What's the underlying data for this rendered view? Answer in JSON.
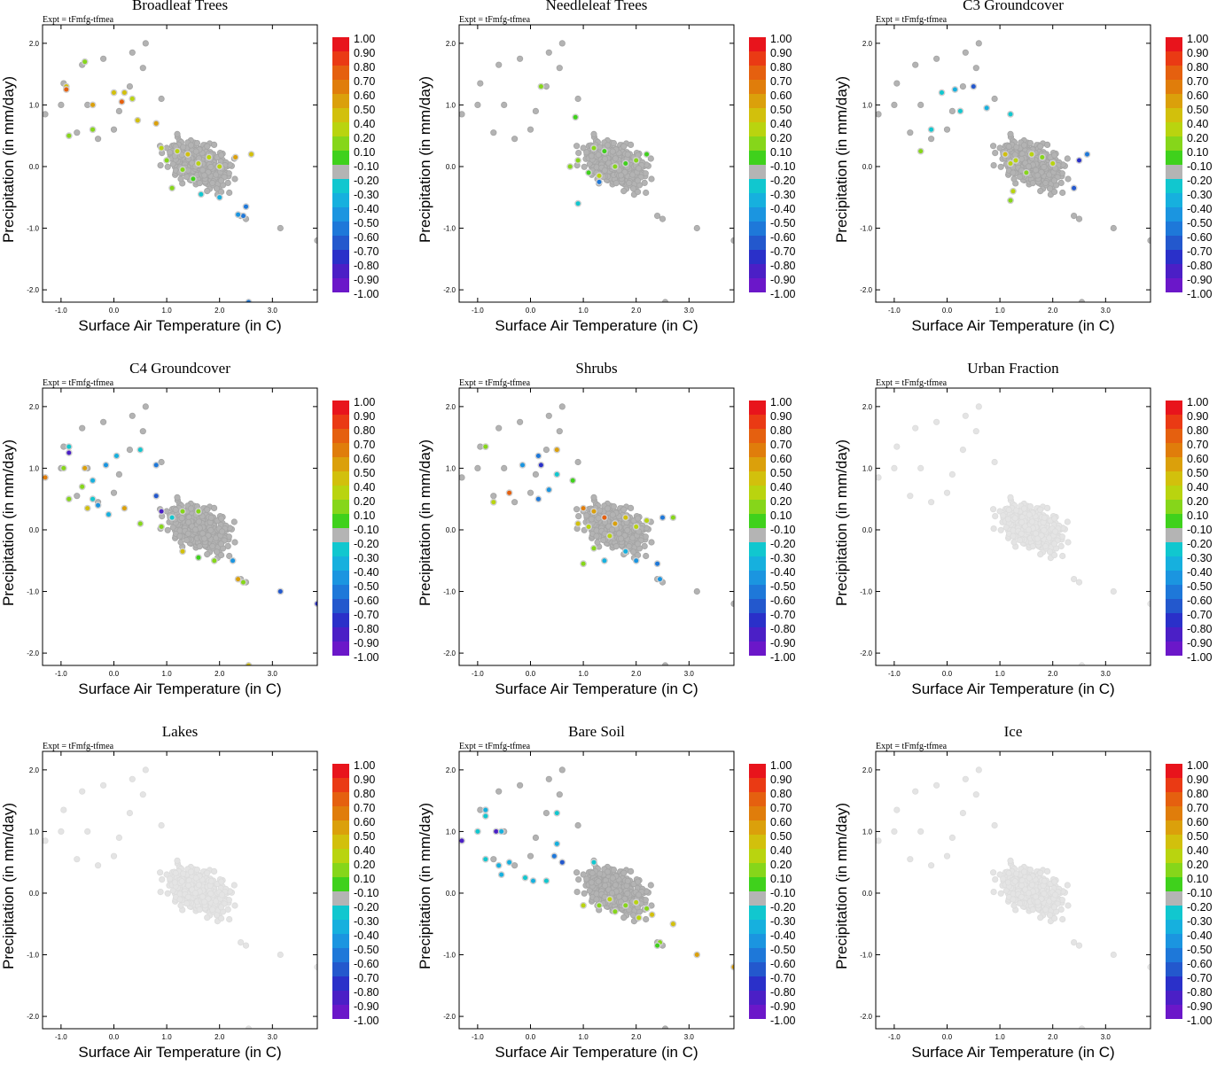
{
  "figure": {
    "type": "scatter-panels",
    "expt_label": "Expt = tFmfg-tfmea",
    "xlabel": "Surface Air Temperature (in C)",
    "ylabel": "Precipitation (in mm/day)",
    "x_ticks": [
      "-1.0",
      "0.0",
      "1.0",
      "2.0",
      "3.0"
    ],
    "y_ticks": [
      "2.0",
      "1.0",
      "0.0",
      "-1.0",
      "-2.0"
    ],
    "colorbar_labels": [
      "1.00",
      "0.90",
      "0.80",
      "0.70",
      "0.60",
      "0.50",
      "0.40",
      "0.20",
      "0.10",
      "-0.10",
      "-0.20",
      "-0.30",
      "-0.40",
      "-0.50",
      "-0.60",
      "-0.70",
      "-0.80",
      "-0.90",
      "-1.00"
    ],
    "colorbar_colors": [
      "#e8141c",
      "#ea3a14",
      "#e5600f",
      "#e07d0b",
      "#dba00b",
      "#d2c00c",
      "#b9d40f",
      "#86d61a",
      "#3fd11c",
      "#b4b4b4",
      "#11c7cf",
      "#16b0de",
      "#1b95e0",
      "#1e78d9",
      "#2358cd",
      "#2a30c9",
      "#4b1fc6",
      "#6b17c9"
    ],
    "colors": {
      "inactive": "#e4e4e4",
      "near_zero": "#b3b3b3",
      "ring": "#cfcfcf"
    }
  },
  "chart_data": [
    {
      "title": "Broadleaf Trees",
      "type": "scatter",
      "xlim": [
        -1.35,
        3.85
      ],
      "ylim": [
        -2.2,
        2.3
      ],
      "points": [
        {
          "x": -0.9,
          "y": 1.3,
          "v": 0.5
        },
        {
          "x": -0.9,
          "y": 1.25,
          "v": 0.8
        },
        {
          "x": -0.55,
          "y": 1.7,
          "v": 0.2
        },
        {
          "x": -0.4,
          "y": 1.0,
          "v": 0.6
        },
        {
          "x": -0.85,
          "y": 0.5,
          "v": 0.2
        },
        {
          "x": -0.4,
          "y": 0.6,
          "v": 0.2
        },
        {
          "x": 0.0,
          "y": 1.2,
          "v": 0.5
        },
        {
          "x": 0.2,
          "y": 1.2,
          "v": 0.5
        },
        {
          "x": 0.15,
          "y": 1.05,
          "v": 0.8
        },
        {
          "x": 0.35,
          "y": 1.1,
          "v": 0.4
        },
        {
          "x": 0.45,
          "y": 0.75,
          "v": 0.5
        },
        {
          "x": 0.8,
          "y": 0.7,
          "v": 0.6
        },
        {
          "x": 0.9,
          "y": 0.3,
          "v": 0.4
        },
        {
          "x": 1.2,
          "y": 0.25,
          "v": 0.3
        },
        {
          "x": 1.4,
          "y": 0.2,
          "v": 0.5
        },
        {
          "x": 1.0,
          "y": 0.1,
          "v": 0.2
        },
        {
          "x": 1.6,
          "y": 0.05,
          "v": 0.3
        },
        {
          "x": 1.8,
          "y": 0.15,
          "v": 0.4
        },
        {
          "x": 1.3,
          "y": -0.05,
          "v": 0.2
        },
        {
          "x": 1.5,
          "y": -0.2,
          "v": 0.1
        },
        {
          "x": 1.1,
          "y": -0.35,
          "v": 0.2
        },
        {
          "x": 2.3,
          "y": 0.15,
          "v": 0.6
        },
        {
          "x": 2.6,
          "y": 0.2,
          "v": 0.5
        },
        {
          "x": 2.0,
          "y": 0.0,
          "v": 0.3
        },
        {
          "x": 2.0,
          "y": -0.5,
          "v": -0.3
        },
        {
          "x": 2.5,
          "y": -0.65,
          "v": -0.5
        },
        {
          "x": 2.45,
          "y": -0.8,
          "v": -0.5
        },
        {
          "x": 2.35,
          "y": -0.78,
          "v": -0.4
        },
        {
          "x": 1.65,
          "y": -0.45,
          "v": -0.2
        },
        {
          "x": 2.55,
          "y": -2.2,
          "v": -0.5
        }
      ]
    },
    {
      "title": "Needleleaf Trees",
      "type": "scatter",
      "xlim": [
        -1.35,
        3.85
      ],
      "ylim": [
        -2.2,
        2.3
      ],
      "points": [
        {
          "x": 0.2,
          "y": 1.3,
          "v": 0.2
        },
        {
          "x": 0.85,
          "y": 0.8,
          "v": 0.1
        },
        {
          "x": 1.2,
          "y": 0.3,
          "v": 0.2
        },
        {
          "x": 1.4,
          "y": 0.25,
          "v": 0.1
        },
        {
          "x": 0.9,
          "y": 0.1,
          "v": 0.2
        },
        {
          "x": 1.6,
          "y": 0.0,
          "v": 0.2
        },
        {
          "x": 1.8,
          "y": 0.05,
          "v": 0.1
        },
        {
          "x": 2.0,
          "y": 0.1,
          "v": 0.2
        },
        {
          "x": 2.2,
          "y": 0.2,
          "v": 0.1
        },
        {
          "x": 1.1,
          "y": -0.1,
          "v": 0.1
        },
        {
          "x": 0.75,
          "y": 0.0,
          "v": 0.2
        },
        {
          "x": 1.3,
          "y": -0.15,
          "v": 0.3
        },
        {
          "x": 0.9,
          "y": -0.6,
          "v": -0.2
        },
        {
          "x": 1.3,
          "y": -0.25,
          "v": -0.5
        }
      ]
    },
    {
      "title": "C3 Groundcover",
      "type": "scatter",
      "xlim": [
        -1.35,
        3.85
      ],
      "ylim": [
        -2.2,
        2.3
      ],
      "points": [
        {
          "x": -0.1,
          "y": 1.2,
          "v": -0.2
        },
        {
          "x": 0.15,
          "y": 1.25,
          "v": -0.3
        },
        {
          "x": 0.5,
          "y": 1.3,
          "v": -0.6
        },
        {
          "x": 0.75,
          "y": 0.95,
          "v": -0.3
        },
        {
          "x": 0.25,
          "y": 0.9,
          "v": -0.2
        },
        {
          "x": 1.2,
          "y": 0.85,
          "v": -0.2
        },
        {
          "x": -0.3,
          "y": 0.6,
          "v": -0.2
        },
        {
          "x": -0.5,
          "y": 0.25,
          "v": 0.2
        },
        {
          "x": 1.1,
          "y": 0.2,
          "v": 0.5
        },
        {
          "x": 1.3,
          "y": 0.1,
          "v": 0.4
        },
        {
          "x": 1.6,
          "y": 0.2,
          "v": 0.3
        },
        {
          "x": 1.8,
          "y": 0.15,
          "v": 0.2
        },
        {
          "x": 2.0,
          "y": 0.05,
          "v": 0.4
        },
        {
          "x": 1.2,
          "y": 0.05,
          "v": 0.3
        },
        {
          "x": 1.5,
          "y": -0.1,
          "v": 0.2
        },
        {
          "x": 1.25,
          "y": -0.4,
          "v": 0.3
        },
        {
          "x": 1.2,
          "y": -0.55,
          "v": 0.2
        },
        {
          "x": 2.5,
          "y": 0.1,
          "v": -0.7
        },
        {
          "x": 2.65,
          "y": 0.2,
          "v": -0.5
        },
        {
          "x": 2.4,
          "y": -0.35,
          "v": -0.6
        }
      ]
    },
    {
      "title": "C4 Groundcover",
      "type": "scatter",
      "xlim": [
        -1.35,
        3.85
      ],
      "ylim": [
        -2.2,
        2.3
      ],
      "points": [
        {
          "x": -1.3,
          "y": 0.85,
          "v": 0.7
        },
        {
          "x": -0.85,
          "y": 1.35,
          "v": -0.2
        },
        {
          "x": -0.85,
          "y": 1.25,
          "v": -0.8
        },
        {
          "x": -0.95,
          "y": 1.0,
          "v": 0.2
        },
        {
          "x": -0.55,
          "y": 1.0,
          "v": 0.6
        },
        {
          "x": -0.4,
          "y": 0.8,
          "v": -0.3
        },
        {
          "x": -0.6,
          "y": 0.7,
          "v": 0.2
        },
        {
          "x": -0.15,
          "y": 1.05,
          "v": -0.4
        },
        {
          "x": 0.05,
          "y": 1.2,
          "v": -0.3
        },
        {
          "x": 0.5,
          "y": 1.3,
          "v": -0.2
        },
        {
          "x": -0.85,
          "y": 0.5,
          "v": 0.2
        },
        {
          "x": -0.4,
          "y": 0.5,
          "v": -0.2
        },
        {
          "x": -0.3,
          "y": 0.4,
          "v": -0.4
        },
        {
          "x": -0.5,
          "y": 0.35,
          "v": 0.5
        },
        {
          "x": -0.1,
          "y": 0.25,
          "v": -0.3
        },
        {
          "x": 0.2,
          "y": 0.35,
          "v": 0.6
        },
        {
          "x": 0.5,
          "y": 0.1,
          "v": 0.2
        },
        {
          "x": 0.8,
          "y": 1.05,
          "v": -0.5
        },
        {
          "x": 0.8,
          "y": 0.55,
          "v": -0.6
        },
        {
          "x": 0.9,
          "y": 0.3,
          "v": -0.8
        },
        {
          "x": 1.1,
          "y": 0.2,
          "v": -0.2
        },
        {
          "x": 1.3,
          "y": 0.3,
          "v": 0.2
        },
        {
          "x": 1.6,
          "y": 0.3,
          "v": 0.2
        },
        {
          "x": 0.9,
          "y": 0.05,
          "v": 0.2
        },
        {
          "x": 1.3,
          "y": -0.35,
          "v": 0.5
        },
        {
          "x": 1.6,
          "y": -0.45,
          "v": 0.1
        },
        {
          "x": 1.9,
          "y": -0.5,
          "v": 0.2
        },
        {
          "x": 2.25,
          "y": -0.5,
          "v": -0.4
        },
        {
          "x": 2.35,
          "y": -0.8,
          "v": 0.6
        },
        {
          "x": 2.45,
          "y": -0.85,
          "v": 0.2
        },
        {
          "x": 3.15,
          "y": -1.0,
          "v": -0.6
        },
        {
          "x": 3.85,
          "y": -1.2,
          "v": -0.7
        },
        {
          "x": 2.55,
          "y": -2.2,
          "v": 0.5
        }
      ]
    },
    {
      "title": "Shrubs",
      "type": "scatter",
      "xlim": [
        -1.35,
        3.85
      ],
      "ylim": [
        -2.2,
        2.3
      ],
      "points": [
        {
          "x": -0.85,
          "y": 1.35,
          "v": 0.2
        },
        {
          "x": -0.15,
          "y": 1.05,
          "v": -0.4
        },
        {
          "x": 0.15,
          "y": 1.2,
          "v": -0.5
        },
        {
          "x": 0.2,
          "y": 1.05,
          "v": -0.7
        },
        {
          "x": 0.5,
          "y": 1.3,
          "v": 0.6
        },
        {
          "x": 0.5,
          "y": 0.9,
          "v": -0.2
        },
        {
          "x": -0.4,
          "y": 0.6,
          "v": 0.8
        },
        {
          "x": 0.35,
          "y": 0.65,
          "v": -0.4
        },
        {
          "x": -0.7,
          "y": 0.45,
          "v": 0.4
        },
        {
          "x": 0.15,
          "y": 0.5,
          "v": -0.5
        },
        {
          "x": 0.8,
          "y": 0.8,
          "v": 0.1
        },
        {
          "x": 1.0,
          "y": 0.35,
          "v": 0.7
        },
        {
          "x": 1.2,
          "y": 0.3,
          "v": 0.6
        },
        {
          "x": 1.4,
          "y": 0.2,
          "v": 0.8
        },
        {
          "x": 1.6,
          "y": 0.1,
          "v": 0.6
        },
        {
          "x": 0.9,
          "y": 0.1,
          "v": 0.5
        },
        {
          "x": 1.1,
          "y": 0.05,
          "v": 0.4
        },
        {
          "x": 1.8,
          "y": 0.2,
          "v": 0.5
        },
        {
          "x": 2.0,
          "y": 0.05,
          "v": 0.3
        },
        {
          "x": 2.2,
          "y": 0.15,
          "v": 0.4
        },
        {
          "x": 1.5,
          "y": -0.1,
          "v": 0.3
        },
        {
          "x": 2.5,
          "y": 0.2,
          "v": -0.5
        },
        {
          "x": 2.7,
          "y": 0.2,
          "v": 0.2
        },
        {
          "x": 1.2,
          "y": -0.3,
          "v": 0.2
        },
        {
          "x": 1.8,
          "y": -0.35,
          "v": -0.3
        },
        {
          "x": 2.0,
          "y": -0.5,
          "v": -0.4
        },
        {
          "x": 2.4,
          "y": -0.55,
          "v": -0.5
        },
        {
          "x": 1.0,
          "y": -0.55,
          "v": 0.2
        },
        {
          "x": 1.4,
          "y": -0.5,
          "v": -0.3
        },
        {
          "x": 2.45,
          "y": -0.8,
          "v": -0.4
        }
      ]
    },
    {
      "title": "Urban Fraction",
      "type": "scatter",
      "xlim": [
        -1.35,
        3.85
      ],
      "ylim": [
        -2.2,
        2.3
      ],
      "points": []
    },
    {
      "title": "Lakes",
      "type": "scatter",
      "xlim": [
        -1.35,
        3.85
      ],
      "ylim": [
        -2.2,
        2.3
      ],
      "points": []
    },
    {
      "title": "Bare Soil",
      "type": "scatter",
      "xlim": [
        -1.35,
        3.85
      ],
      "ylim": [
        -2.2,
        2.3
      ],
      "points": [
        {
          "x": -1.3,
          "y": 0.85,
          "v": -0.8
        },
        {
          "x": -0.85,
          "y": 1.35,
          "v": -0.3
        },
        {
          "x": -0.85,
          "y": 1.25,
          "v": -0.2
        },
        {
          "x": -1.0,
          "y": 1.0,
          "v": -0.2
        },
        {
          "x": -0.65,
          "y": 1.0,
          "v": -0.8
        },
        {
          "x": -0.55,
          "y": 1.0,
          "v": -0.3
        },
        {
          "x": -0.85,
          "y": 0.55,
          "v": -0.2
        },
        {
          "x": -0.6,
          "y": 0.45,
          "v": -0.3
        },
        {
          "x": -0.4,
          "y": 0.5,
          "v": -0.3
        },
        {
          "x": -0.55,
          "y": 0.3,
          "v": -0.3
        },
        {
          "x": -0.1,
          "y": 0.25,
          "v": -0.2
        },
        {
          "x": 0.05,
          "y": 0.2,
          "v": -0.3
        },
        {
          "x": 0.5,
          "y": 1.3,
          "v": -0.2
        },
        {
          "x": 0.5,
          "y": 0.8,
          "v": -0.3
        },
        {
          "x": 0.45,
          "y": 0.6,
          "v": -0.5
        },
        {
          "x": 0.3,
          "y": 0.2,
          "v": -0.2
        },
        {
          "x": 0.6,
          "y": 0.5,
          "v": -0.6
        },
        {
          "x": 1.2,
          "y": 0.5,
          "v": -0.2
        },
        {
          "x": 1.0,
          "y": -0.2,
          "v": 0.3
        },
        {
          "x": 1.3,
          "y": -0.2,
          "v": 0.2
        },
        {
          "x": 1.5,
          "y": -0.1,
          "v": 0.3
        },
        {
          "x": 1.8,
          "y": -0.2,
          "v": 0.2
        },
        {
          "x": 2.0,
          "y": -0.15,
          "v": 0.3
        },
        {
          "x": 2.2,
          "y": -0.25,
          "v": 0.2
        },
        {
          "x": 1.6,
          "y": -0.3,
          "v": 0.2
        },
        {
          "x": 2.05,
          "y": -0.4,
          "v": 0.4
        },
        {
          "x": 2.3,
          "y": -0.35,
          "v": 0.5
        },
        {
          "x": 2.7,
          "y": -0.5,
          "v": 0.5
        },
        {
          "x": 2.45,
          "y": -0.8,
          "v": 0.2
        },
        {
          "x": 2.4,
          "y": -0.85,
          "v": 0.1
        },
        {
          "x": 3.15,
          "y": -1.0,
          "v": 0.6
        },
        {
          "x": 3.85,
          "y": -1.2,
          "v": 0.6
        }
      ]
    },
    {
      "title": "Ice",
      "type": "scatter",
      "xlim": [
        -1.35,
        3.85
      ],
      "ylim": [
        -2.2,
        2.3
      ],
      "points": []
    }
  ]
}
